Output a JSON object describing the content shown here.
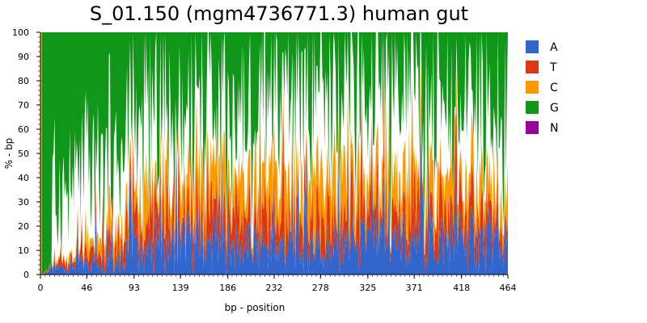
{
  "chart_data": {
    "type": "area",
    "title": "S_01.150 (mgm4736771.3) human gut",
    "xlabel": "bp - position",
    "ylabel": "% - bp",
    "xlim": [
      0,
      464
    ],
    "ylim": [
      0,
      100
    ],
    "x_ticks": [
      "0",
      "46",
      "93",
      "139",
      "186",
      "232",
      "278",
      "325",
      "371",
      "418",
      "464"
    ],
    "y_ticks": [
      "0",
      "10",
      "20",
      "30",
      "40",
      "50",
      "60",
      "70",
      "80",
      "90",
      "100"
    ],
    "stacking": "stacked to 100%",
    "series": [
      {
        "name": "A",
        "color": "#3366cc",
        "sampled_x": [
          0,
          23,
          46,
          70,
          93,
          116,
          139,
          162,
          186,
          209,
          232,
          255,
          278,
          302,
          325,
          348,
          371,
          394,
          418,
          441,
          464
        ],
        "values": [
          0,
          3,
          5,
          8,
          10,
          12,
          14,
          14,
          13,
          12,
          12,
          12,
          12,
          12,
          13,
          14,
          15,
          14,
          15,
          14,
          12
        ]
      },
      {
        "name": "T",
        "color": "#dc3912",
        "sampled_x": [
          0,
          23,
          46,
          70,
          93,
          116,
          139,
          162,
          186,
          209,
          232,
          255,
          278,
          302,
          325,
          348,
          371,
          394,
          418,
          441,
          464
        ],
        "values": [
          0,
          2,
          4,
          6,
          8,
          10,
          11,
          11,
          11,
          10,
          10,
          11,
          11,
          10,
          11,
          10,
          11,
          10,
          10,
          10,
          9
        ]
      },
      {
        "name": "C",
        "color": "#ff9900",
        "sampled_x": [
          0,
          23,
          46,
          70,
          93,
          116,
          139,
          162,
          186,
          209,
          232,
          255,
          278,
          302,
          325,
          348,
          371,
          394,
          418,
          441,
          464
        ],
        "values": [
          0,
          1,
          3,
          5,
          8,
          12,
          14,
          15,
          14,
          13,
          14,
          15,
          15,
          14,
          13,
          14,
          14,
          13,
          12,
          12,
          10
        ]
      },
      {
        "name": "G",
        "color": "#109618",
        "sampled_x": [
          0,
          23,
          46,
          70,
          93,
          116,
          139,
          162,
          186,
          209,
          232,
          255,
          278,
          302,
          325,
          348,
          371,
          394,
          418,
          441,
          464
        ],
        "values": [
          100,
          60,
          40,
          35,
          30,
          27,
          25,
          24,
          25,
          26,
          25,
          24,
          24,
          25,
          24,
          24,
          23,
          24,
          24,
          25,
          27
        ]
      },
      {
        "name": "N",
        "color": "#990099",
        "sampled_x": [
          0,
          464
        ],
        "values": [
          0,
          0
        ]
      }
    ],
    "remainder_color": "#ffffff",
    "legend": {
      "placement": "right",
      "entries": [
        "A",
        "T",
        "C",
        "G",
        "N"
      ]
    },
    "grid": false
  }
}
